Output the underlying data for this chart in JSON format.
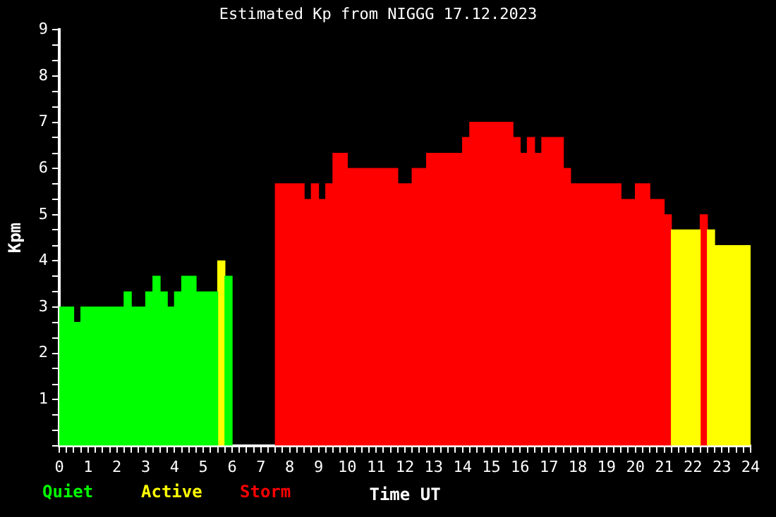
{
  "chart_data": {
    "type": "histogram",
    "title": "Estimated Kp from NIGGG 17.12.2023",
    "xlabel": "Time UT",
    "ylabel": "Kpm",
    "bins": [
      0,
      0.5,
      0.75,
      2.25,
      2.5,
      3,
      3.25,
      3.5,
      3.75,
      4,
      4.25,
      4.75,
      5.5,
      5.75,
      6,
      7.5,
      8.5,
      8.75,
      9,
      9.25,
      9.5,
      10,
      11.75,
      12.25,
      12.75,
      14,
      14.25,
      15.75,
      16,
      16.25,
      16.5,
      16.75,
      17.5,
      17.75,
      19.5,
      20,
      20.5,
      21,
      21.25,
      22.25,
      22.5,
      22.75,
      24
    ],
    "series": [
      {
        "name": "Quiet",
        "color": "#00ff00",
        "values": [
          3,
          2.67,
          3,
          3.33,
          3,
          3.33,
          3.67,
          3.33,
          3,
          3.33,
          3.67,
          3.33,
          null,
          3.67,
          null,
          null,
          null,
          null,
          null,
          null,
          null,
          null,
          null,
          null,
          null,
          null,
          null,
          null,
          null,
          null,
          null,
          null,
          null,
          null,
          null,
          null,
          null,
          null,
          null,
          null,
          null,
          null
        ]
      },
      {
        "name": "Active",
        "color": "#ffff00",
        "values": [
          null,
          null,
          null,
          null,
          null,
          null,
          null,
          null,
          null,
          null,
          null,
          null,
          4,
          null,
          null,
          null,
          null,
          null,
          null,
          null,
          null,
          null,
          null,
          null,
          null,
          null,
          null,
          null,
          null,
          null,
          null,
          null,
          null,
          null,
          null,
          null,
          null,
          null,
          4.67,
          null,
          4.67,
          4.33
        ]
      },
      {
        "name": "Storm",
        "color": "#ff0000",
        "values": [
          null,
          null,
          null,
          null,
          null,
          null,
          null,
          null,
          null,
          null,
          null,
          null,
          null,
          null,
          null,
          5.67,
          5.33,
          5.67,
          5.33,
          5.67,
          6.33,
          6,
          5.67,
          6,
          6.33,
          6.67,
          7,
          6.67,
          6.33,
          6.67,
          6.33,
          6.67,
          6,
          5.67,
          5.33,
          5.67,
          5.33,
          5,
          null,
          5,
          null,
          null
        ]
      }
    ],
    "xlim": [
      0,
      24
    ],
    "xticks": [
      0,
      {
        "value": 0.25,
        "label": null
      },
      {
        "value": 0.5,
        "label": null
      },
      {
        "value": 0.75,
        "label": null
      },
      1,
      {
        "value": 1.25,
        "label": null
      },
      {
        "value": 1.5,
        "label": null
      },
      {
        "value": 1.75,
        "label": null
      },
      2,
      {
        "value": 2.25,
        "label": null
      },
      {
        "value": 2.5,
        "label": null
      },
      {
        "value": 2.75,
        "label": null
      },
      3,
      {
        "value": 3.25,
        "label": null
      },
      {
        "value": 3.5,
        "label": null
      },
      {
        "value": 3.75,
        "label": null
      },
      4,
      {
        "value": 4.25,
        "label": null
      },
      {
        "value": 4.5,
        "label": null
      },
      {
        "value": 4.75,
        "label": null
      },
      5,
      {
        "value": 5.25,
        "label": null
      },
      {
        "value": 5.5,
        "label": null
      },
      {
        "value": 5.75,
        "label": null
      },
      6,
      {
        "value": 6.25,
        "label": null
      },
      {
        "value": 6.5,
        "label": null
      },
      {
        "value": 6.75,
        "label": null
      },
      7,
      {
        "value": 7.25,
        "label": null
      },
      {
        "value": 7.5,
        "label": null
      },
      {
        "value": 7.75,
        "label": null
      },
      8,
      {
        "value": 8.25,
        "label": null
      },
      {
        "value": 8.5,
        "label": null
      },
      {
        "value": 8.75,
        "label": null
      },
      9,
      {
        "value": 9.25,
        "label": null
      },
      {
        "value": 9.5,
        "label": null
      },
      {
        "value": 9.75,
        "label": null
      },
      10,
      {
        "value": 10.25,
        "label": null
      },
      {
        "value": 10.5,
        "label": null
      },
      {
        "value": 10.75,
        "label": null
      },
      11,
      {
        "value": 11.25,
        "label": null
      },
      {
        "value": 11.5,
        "label": null
      },
      {
        "value": 11.75,
        "label": null
      },
      12,
      {
        "value": 12.25,
        "label": null
      },
      {
        "value": 12.5,
        "label": null
      },
      {
        "value": 12.75,
        "label": null
      },
      13,
      {
        "value": 13.25,
        "label": null
      },
      {
        "value": 13.5,
        "label": null
      },
      {
        "value": 13.75,
        "label": null
      },
      14,
      {
        "value": 14.25,
        "label": null
      },
      {
        "value": 14.5,
        "label": null
      },
      {
        "value": 14.75,
        "label": null
      },
      15,
      {
        "value": 15.25,
        "label": null
      },
      {
        "value": 15.5,
        "label": null
      },
      {
        "value": 15.75,
        "label": null
      },
      16,
      {
        "value": 16.25,
        "label": null
      },
      {
        "value": 16.5,
        "label": null
      },
      {
        "value": 16.75,
        "label": null
      },
      17,
      {
        "value": 17.25,
        "label": null
      },
      {
        "value": 17.5,
        "label": null
      },
      {
        "value": 17.75,
        "label": null
      },
      18,
      {
        "value": 18.25,
        "label": null
      },
      {
        "value": 18.5,
        "label": null
      },
      {
        "value": 18.75,
        "label": null
      },
      19,
      {
        "value": 19.25,
        "label": null
      },
      {
        "value": 19.5,
        "label": null
      },
      {
        "value": 19.75,
        "label": null
      },
      20,
      {
        "value": 20.25,
        "label": null
      },
      {
        "value": 20.5,
        "label": null
      },
      {
        "value": 20.75,
        "label": null
      },
      21,
      {
        "value": 21.25,
        "label": null
      },
      {
        "value": 21.5,
        "label": null
      },
      {
        "value": 21.75,
        "label": null
      },
      22,
      {
        "value": 22.25,
        "label": null
      },
      {
        "value": 22.5,
        "label": null
      },
      {
        "value": 22.75,
        "label": null
      },
      23,
      {
        "value": 23.25,
        "label": null
      },
      {
        "value": 23.5,
        "label": null
      },
      {
        "value": 23.75,
        "label": null
      },
      24
    ],
    "ylim": [
      0,
      9
    ],
    "yticks": [
      {
        "value": 0,
        "label": null
      },
      {
        "value": 0.33,
        "label": null
      },
      {
        "value": 0.67,
        "label": null
      },
      1,
      {
        "value": 1.33,
        "label": null
      },
      {
        "value": 1.67,
        "label": null
      },
      2,
      {
        "value": 2.33,
        "label": null
      },
      {
        "value": 2.67,
        "label": null
      },
      3,
      {
        "value": 3.33,
        "label": null
      },
      {
        "value": 3.67,
        "label": null
      },
      4,
      {
        "value": 4.33,
        "label": null
      },
      {
        "value": 4.67,
        "label": null
      },
      5,
      {
        "value": 5.33,
        "label": null
      },
      {
        "value": 5.67,
        "label": null
      },
      6,
      {
        "value": 6.33,
        "label": null
      },
      {
        "value": 6.67,
        "label": null
      },
      7,
      {
        "value": 7.33,
        "label": null
      },
      {
        "value": 7.67,
        "label": null
      },
      8,
      {
        "value": 8.33,
        "label": null
      },
      {
        "value": 8.67,
        "label": null
      },
      9
    ],
    "legend": "bottom left"
  }
}
